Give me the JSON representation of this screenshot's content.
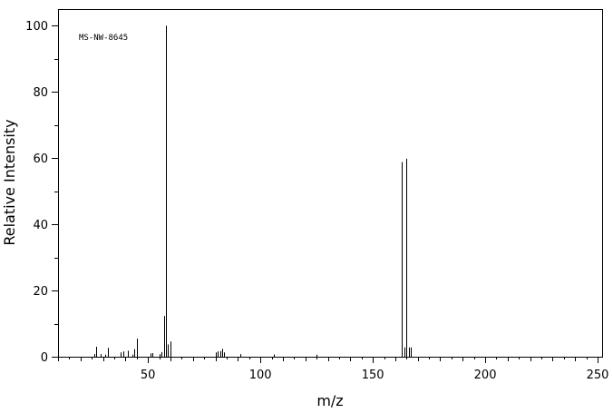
{
  "chart_data": {
    "type": "bar",
    "style": "mass-spectrum-stick",
    "title": "",
    "annotation": "MS-NW-8645",
    "xlabel": "m/z",
    "ylabel": "Relative Intensity",
    "xlim": [
      10,
      252
    ],
    "ylim": [
      0,
      105
    ],
    "x_ticks": [
      50,
      100,
      150,
      200,
      250
    ],
    "y_ticks": [
      0,
      20,
      40,
      60,
      80,
      100
    ],
    "grid": false,
    "legend": "none",
    "line_color": "#000000",
    "series": [
      {
        "x": [
          26,
          27,
          29,
          31,
          32,
          38,
          39,
          41,
          43,
          44,
          45,
          51,
          52,
          55,
          56,
          57,
          58,
          59,
          60,
          80,
          81,
          82,
          83,
          84,
          91,
          106,
          125,
          163,
          164,
          165,
          166,
          167
        ],
        "y": [
          0.8,
          3.0,
          0.8,
          0.6,
          2.7,
          1.3,
          1.6,
          1.8,
          0.6,
          2.3,
          5.5,
          1.0,
          1.1,
          0.8,
          1.4,
          12.3,
          100,
          3.7,
          4.6,
          1.3,
          1.6,
          1.7,
          2.4,
          1.3,
          0.8,
          0.7,
          0.6,
          58.8,
          2.8,
          59.8,
          2.8,
          2.8
        ]
      }
    ]
  }
}
